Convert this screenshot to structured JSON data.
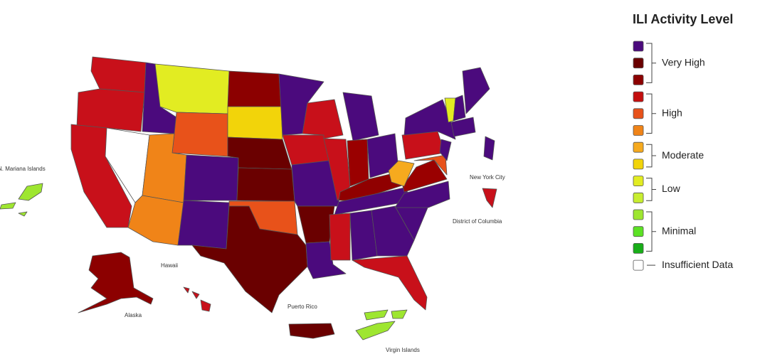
{
  "legend": {
    "title": "ILI Activity Level",
    "groups": [
      {
        "label": "Very High",
        "colors": [
          "#4b0a7d",
          "#6a0000",
          "#8c0000"
        ]
      },
      {
        "label": "High",
        "colors": [
          "#c40e0e",
          "#e8521a",
          "#f08418"
        ]
      },
      {
        "label": "Moderate",
        "colors": [
          "#f6aa1e",
          "#f2d40a"
        ]
      },
      {
        "label": "Low",
        "colors": [
          "#e2ec22",
          "#c8ee30"
        ]
      },
      {
        "label": "Minimal",
        "colors": [
          "#9ee630",
          "#5ce224",
          "#18ae18"
        ]
      },
      {
        "label": "Insufficient Data",
        "colors": [
          "#ffffff"
        ]
      }
    ]
  },
  "map": {
    "labels": {
      "mariana": "N. Mariana Islands",
      "hawaii": "Hawaii",
      "alaska": "Alaska",
      "puerto_rico": "Puerto Rico",
      "virgin_islands": "Virgin Islands",
      "nyc": "New York City",
      "dc": "District of Columbia"
    }
  }
}
